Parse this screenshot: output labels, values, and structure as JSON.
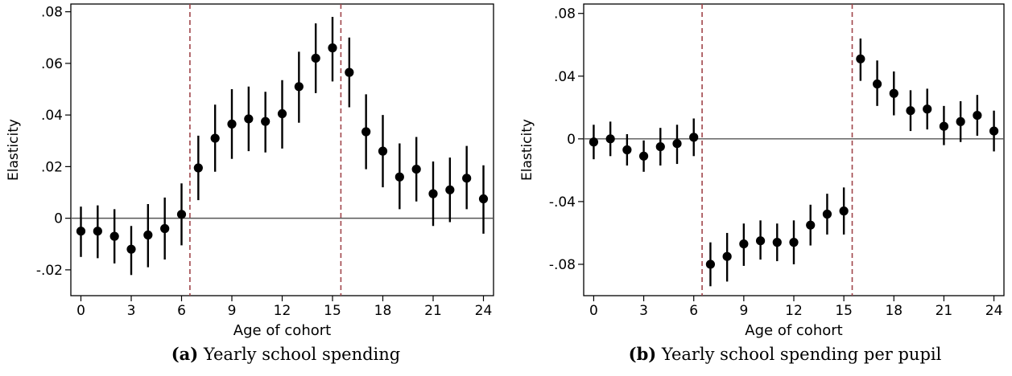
{
  "panels": [
    {
      "caption_label": "(a)",
      "caption_text": "Yearly school spending"
    },
    {
      "caption_label": "(b)",
      "caption_text": "Yearly school spending per pupil"
    }
  ],
  "colors": {
    "point": "#000000",
    "vline": "#a0454a",
    "zero_line": "#555555",
    "frame": "#000000"
  },
  "chart_data": [
    {
      "type": "scatter",
      "title": "",
      "xlabel": "Age of cohort",
      "ylabel": "Elasticity",
      "xlim": [
        -0.6,
        24.6
      ],
      "ylim": [
        -0.03,
        0.083
      ],
      "xticks": [
        0,
        3,
        6,
        9,
        12,
        15,
        18,
        21,
        24
      ],
      "xtick_labels": [
        "0",
        "3",
        "6",
        "9",
        "12",
        "15",
        "18",
        "21",
        "24"
      ],
      "yticks": [
        -0.02,
        0,
        0.02,
        0.04,
        0.06,
        0.08
      ],
      "ytick_labels": [
        "-.02",
        "0",
        ".02",
        ".04",
        ".06",
        ".08"
      ],
      "grid": false,
      "reference_hline": 0,
      "reference_vlines": [
        6.5,
        15.5
      ],
      "x": [
        0,
        1,
        2,
        3,
        4,
        5,
        6,
        7,
        8,
        9,
        10,
        11,
        12,
        13,
        14,
        15,
        16,
        17,
        18,
        19,
        20,
        21,
        22,
        23,
        24
      ],
      "y": [
        -0.005,
        -0.005,
        -0.007,
        -0.012,
        -0.0065,
        -0.004,
        0.0015,
        0.0195,
        0.031,
        0.0365,
        0.0385,
        0.0375,
        0.0405,
        0.051,
        0.062,
        0.066,
        0.0565,
        0.0335,
        0.026,
        0.016,
        0.019,
        0.0095,
        0.011,
        0.0155,
        0.0075
      ],
      "ci_low": [
        -0.015,
        -0.0155,
        -0.0175,
        -0.022,
        -0.019,
        -0.016,
        -0.0105,
        0.007,
        0.018,
        0.023,
        0.026,
        0.0255,
        0.027,
        0.037,
        0.0485,
        0.053,
        0.043,
        0.019,
        0.012,
        0.0035,
        0.0065,
        -0.003,
        -0.0015,
        0.0035,
        -0.006
      ],
      "ci_high": [
        0.0045,
        0.005,
        0.0035,
        -0.003,
        0.0055,
        0.008,
        0.0135,
        0.032,
        0.044,
        0.05,
        0.051,
        0.049,
        0.0535,
        0.0645,
        0.0755,
        0.078,
        0.07,
        0.048,
        0.04,
        0.029,
        0.0315,
        0.022,
        0.0235,
        0.028,
        0.0205
      ]
    },
    {
      "type": "scatter",
      "title": "",
      "xlabel": "Age of cohort",
      "ylabel": "Elasticity",
      "xlim": [
        -0.6,
        24.6
      ],
      "ylim": [
        -0.1,
        0.086
      ],
      "xticks": [
        0,
        3,
        6,
        9,
        12,
        15,
        18,
        21,
        24
      ],
      "xtick_labels": [
        "0",
        "3",
        "6",
        "9",
        "12",
        "15",
        "18",
        "21",
        "24"
      ],
      "yticks": [
        -0.08,
        -0.04,
        0,
        0.04,
        0.08
      ],
      "ytick_labels": [
        "-.08",
        "-.04",
        "0",
        ".04",
        ".08"
      ],
      "grid": false,
      "reference_hline": 0,
      "reference_vlines": [
        6.5,
        15.5
      ],
      "x": [
        0,
        1,
        2,
        3,
        4,
        5,
        6,
        7,
        8,
        9,
        10,
        11,
        12,
        13,
        14,
        15,
        16,
        17,
        18,
        19,
        20,
        21,
        22,
        23,
        24
      ],
      "y": [
        -0.002,
        0,
        -0.007,
        -0.011,
        -0.005,
        -0.003,
        0.001,
        -0.08,
        -0.075,
        -0.067,
        -0.065,
        -0.066,
        -0.066,
        -0.055,
        -0.048,
        -0.046,
        0.051,
        0.035,
        0.029,
        0.018,
        0.019,
        0.008,
        0.011,
        0.015,
        0.005
      ],
      "ci_low": [
        -0.013,
        -0.011,
        -0.017,
        -0.021,
        -0.017,
        -0.016,
        -0.011,
        -0.094,
        -0.091,
        -0.081,
        -0.077,
        -0.078,
        -0.08,
        -0.068,
        -0.061,
        -0.061,
        0.037,
        0.021,
        0.015,
        0.005,
        0.006,
        -0.004,
        -0.002,
        0.002,
        -0.008
      ],
      "ci_high": [
        0.009,
        0.011,
        0.003,
        -0.001,
        0.007,
        0.009,
        0.013,
        -0.066,
        -0.06,
        -0.054,
        -0.052,
        -0.054,
        -0.052,
        -0.042,
        -0.035,
        -0.031,
        0.064,
        0.05,
        0.043,
        0.031,
        0.032,
        0.021,
        0.024,
        0.028,
        0.018
      ]
    }
  ]
}
